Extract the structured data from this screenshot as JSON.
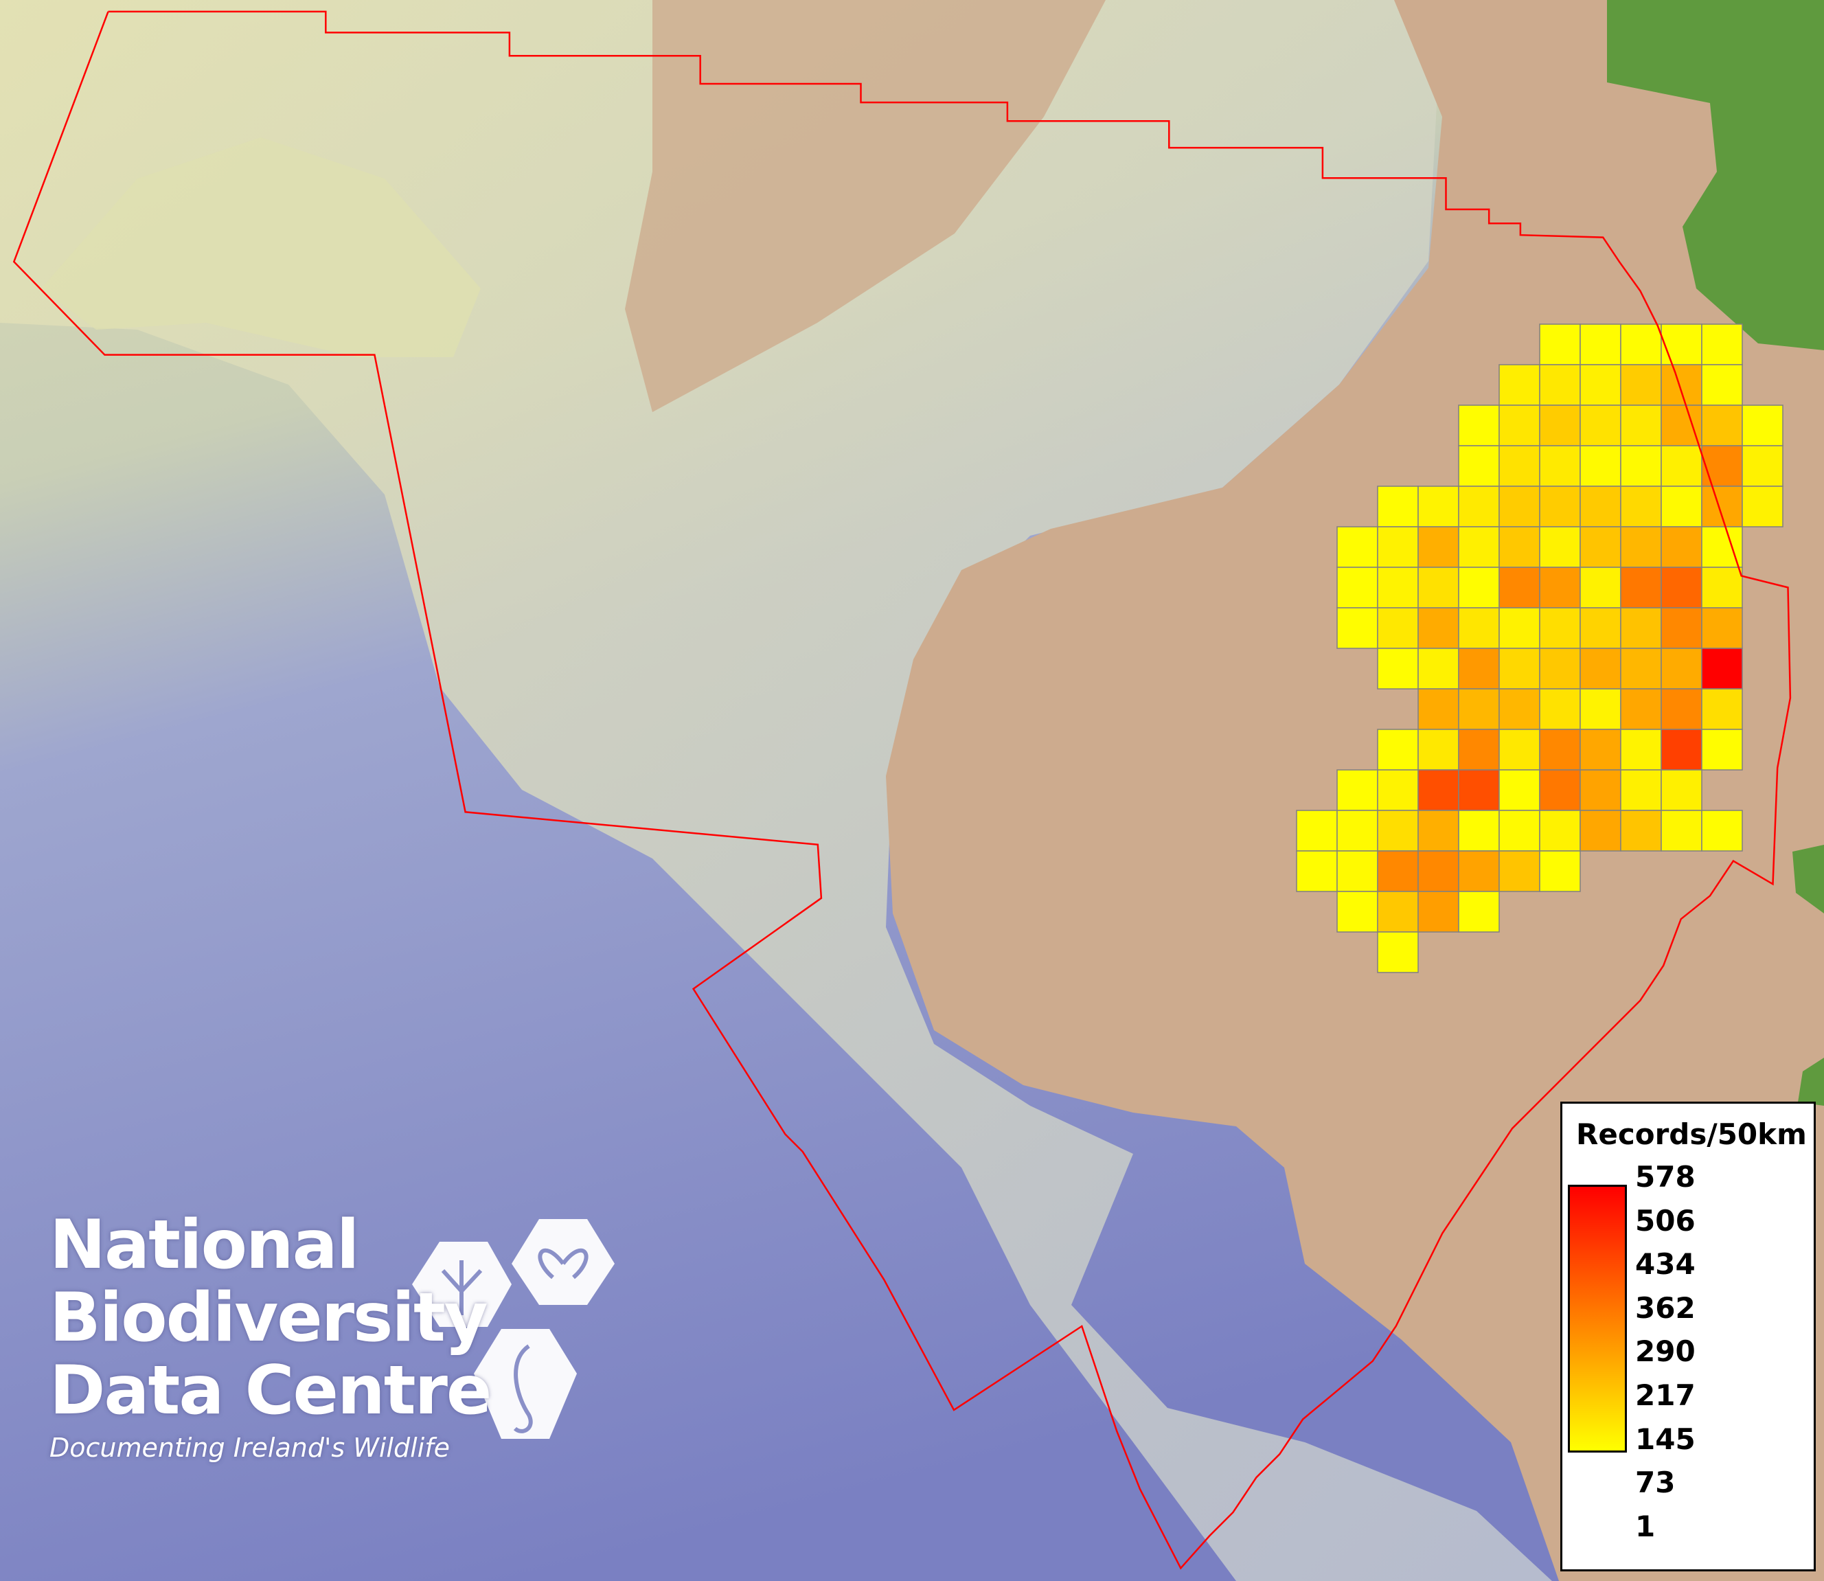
{
  "map": {
    "colors": {
      "deep_sea": "#7d83c4",
      "shelf": "#d8dab0",
      "slope": "#c6cfc8",
      "land": "#cdab8e",
      "vegetation": "#5f9a3e",
      "boundary": "#ff0000",
      "grid_line": "#808080",
      "scale_low": "#ffff00",
      "scale_high": "#ff0000"
    },
    "grid_cells_records_per_50km": [
      [
        null,
        null,
        null,
        null,
        null,
        null,
        5,
        5,
        5,
        5,
        5,
        null
      ],
      [
        null,
        null,
        null,
        null,
        null,
        39,
        52,
        35,
        116,
        182,
        5,
        null
      ],
      [
        null,
        null,
        null,
        null,
        5,
        57,
        116,
        66,
        52,
        190,
        135,
        5
      ],
      [
        null,
        null,
        null,
        null,
        8,
        66,
        48,
        12,
        12,
        35,
        270,
        30
      ],
      [
        null,
        null,
        5,
        28,
        48,
        116,
        116,
        120,
        88,
        12,
        200,
        30
      ],
      [
        null,
        5,
        30,
        182,
        35,
        125,
        30,
        135,
        165,
        200,
        8,
        null
      ],
      [
        null,
        5,
        28,
        70,
        5,
        270,
        232,
        30,
        307,
        346,
        43,
        null
      ],
      [
        null,
        5,
        52,
        190,
        57,
        30,
        75,
        100,
        140,
        270,
        190,
        null
      ],
      [
        null,
        null,
        5,
        30,
        232,
        90,
        125,
        190,
        165,
        190,
        578,
        null
      ],
      [
        null,
        null,
        null,
        190,
        165,
        165,
        66,
        28,
        200,
        270,
        75,
        null
      ],
      [
        null,
        null,
        5,
        52,
        270,
        52,
        270,
        200,
        28,
        434,
        5,
        null
      ],
      [
        null,
        5,
        28,
        400,
        400,
        5,
        307,
        210,
        35,
        35,
        null,
        null
      ],
      [
        5,
        12,
        75,
        182,
        5,
        12,
        30,
        200,
        135,
        18,
        5,
        null
      ],
      [
        5,
        12,
        270,
        270,
        210,
        135,
        5,
        null,
        null,
        null,
        null,
        null
      ],
      [
        null,
        5,
        125,
        220,
        5,
        null,
        null,
        null,
        null,
        null,
        null,
        null
      ],
      [
        null,
        null,
        5,
        null,
        null,
        null,
        null,
        null,
        null,
        null,
        null,
        null
      ]
    ]
  },
  "legend": {
    "title": "Records/50km",
    "min": 1,
    "max": 578,
    "labels": [
      "578",
      "506",
      "434",
      "362",
      "290",
      "217",
      "145",
      "73",
      "1"
    ]
  },
  "logo": {
    "line1": "National",
    "line2": "Biodiversity",
    "line3": "Data Centre",
    "tagline": "Documenting Ireland's Wildlife",
    "icons": [
      "tree-icon",
      "butterfly-icon",
      "seahorse-icon"
    ]
  }
}
